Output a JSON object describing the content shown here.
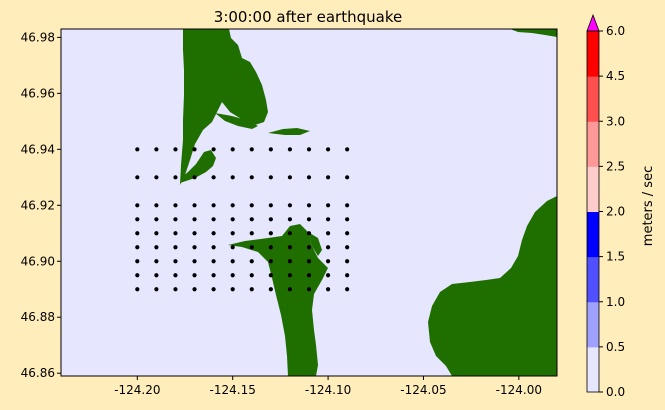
{
  "title": "3:00:00 after earthquake",
  "colors": {
    "figure_bg": "#ffeebb",
    "water": "#e6e6ff",
    "land": "#1f6e00",
    "gauge": "#000000"
  },
  "map": {
    "xlim": [
      -124.24,
      -123.98
    ],
    "ylim": [
      46.859,
      46.983
    ],
    "x_ticks": [
      "-124.20",
      "-124.15",
      "-124.10",
      "-124.05",
      "-124.00"
    ],
    "x_tick_values": [
      -124.2,
      -124.15,
      -124.1,
      -124.05,
      -124.0
    ],
    "y_ticks": [
      "46.86",
      "46.88",
      "46.90",
      "46.92",
      "46.94",
      "46.96",
      "46.98"
    ],
    "y_tick_values": [
      46.86,
      46.88,
      46.9,
      46.92,
      46.94,
      46.96,
      46.98
    ],
    "gauge_grid": {
      "lon": [
        -124.2,
        -124.19,
        -124.18,
        -124.17,
        -124.16,
        -124.15,
        -124.14,
        -124.13,
        -124.12,
        -124.11,
        -124.1,
        -124.09
      ],
      "lat": [
        46.94,
        46.93,
        46.92,
        46.915,
        46.91,
        46.905,
        46.9,
        46.895,
        46.89
      ]
    }
  },
  "colorbar": {
    "label": "meters / sec",
    "extend": "max",
    "over_color": "#ff00ff",
    "levels": [
      0.0,
      0.5,
      1.0,
      1.5,
      2.0,
      2.5,
      3.0,
      4.5,
      6.0
    ],
    "tick_labels": [
      "0.0",
      "0.5",
      "1.0",
      "1.5",
      "2.0",
      "2.5",
      "3.0",
      "4.5",
      "6.0"
    ],
    "colors": [
      "#e6e6ff",
      "#a0a0ff",
      "#5050ff",
      "#0000ff",
      "#ffcccc",
      "#ff9999",
      "#ff5050",
      "#ff0000"
    ]
  }
}
